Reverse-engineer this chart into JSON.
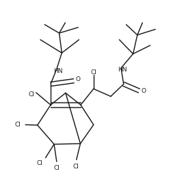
{
  "bg_color": "#ffffff",
  "line_color": "#1a1a1a",
  "lw": 1.05,
  "figsize": [
    2.51,
    2.75
  ],
  "dpi": 100,
  "xlim": [
    0.0,
    1.0
  ],
  "ylim": [
    0.0,
    1.0
  ]
}
